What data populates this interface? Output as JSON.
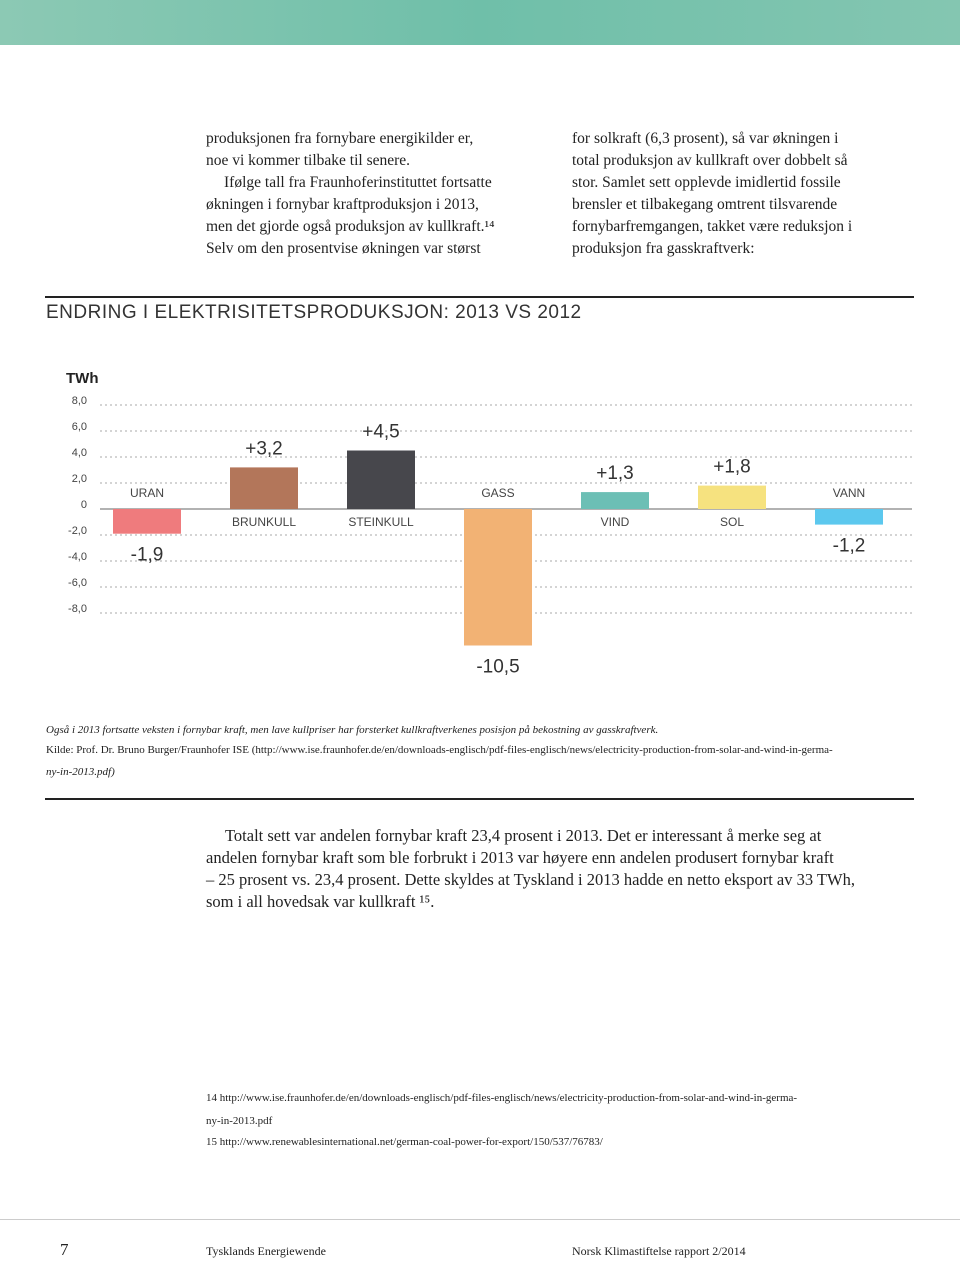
{
  "body_left": [
    "produksjonen fra fornybare energikilder er,",
    "noe vi kommer tilbake til senere.",
    "Ifølge tall fra Fraunhoferinstituttet fortsatte",
    "økningen i fornybar kraftproduksjon i 2013,",
    "men det gjorde også produksjon av kullkraft.¹⁴",
    "Selv om den prosentvise økningen var størst"
  ],
  "body_right": [
    "for solkraft (6,3 prosent), så var økningen i",
    "total produksjon av kullkraft over dobbelt så",
    "stor. Samlet sett opplevde imidlertid fossile",
    "brensler et tilbakegang omtrent tilsvarende",
    "fornybarfremgangen, takket være reduksjon i",
    "produksjon fra gasskraftverk:"
  ],
  "chart_data": {
    "type": "bar",
    "title": "ENDRING I ELEKTRISITETSPRODUKSJON: 2013 VS 2012",
    "y_label": "TWh",
    "categories": [
      "URAN",
      "BRUNKULL",
      "STEINKULL",
      "GASS",
      "VIND",
      "SOL",
      "VANN"
    ],
    "values": [
      -1.9,
      3.2,
      4.5,
      -10.5,
      1.3,
      1.8,
      -1.2
    ],
    "value_labels": [
      "-1,9",
      "+3,2",
      "+4,5",
      "-10,5",
      "+1,3",
      "+1,8",
      "-1,2"
    ],
    "colors": [
      "#ef7b7d",
      "#b3765a",
      "#47474c",
      "#f2b274",
      "#6cbfb5",
      "#f6e27f",
      "#5cc8ee"
    ],
    "ylim": [
      -8,
      8
    ],
    "yticks": [
      {
        "value": 8,
        "label": "8,0"
      },
      {
        "value": 6,
        "label": "6,0"
      },
      {
        "value": 4,
        "label": "4,0"
      },
      {
        "value": 2,
        "label": "2,0"
      },
      0,
      {
        "value": -2,
        "label": "-2,0"
      },
      {
        "value": -4,
        "label": "-4,0"
      },
      {
        "value": -6,
        "label": "-6,0"
      },
      {
        "value": -8,
        "label": "-8,0"
      }
    ],
    "grid": true
  },
  "caption": "Også i 2013 fortsatte veksten i fornybar kraft, men lave kullpriser har forsterket kullkraftverkenes posisjon på bekostning av gasskraftverk.",
  "source_lines": [
    "Kilde: Prof. Dr. Bruno Burger/Fraunhofer ISE (http://www.ise.fraunhofer.de/en/downloads-englisch/pdf-files-englisch/news/electricity-production-from-solar-and-wind-in-germa-",
    "ny-in-2013.pdf)"
  ],
  "paragraph_lines": [
    "Totalt sett var andelen fornybar kraft 23,4 prosent i 2013. Det er interessant å merke seg at",
    "andelen fornybar kraft som ble forbrukt i 2013 var høyere enn andelen produsert fornybar kraft",
    "– 25 prosent vs. 23,4 prosent. Dette skyldes at Tyskland i 2013 hadde en netto eksport av 33 TWh,",
    "som i all hovedsak var kullkraft ¹⁵."
  ],
  "footnotes": [
    "14  http://www.ise.fraunhofer.de/en/downloads-englisch/pdf-files-englisch/news/electricity-production-from-solar-and-wind-in-germa-",
    "ny-in-2013.pdf",
    "15  http://www.renewablesinternational.net/german-coal-power-for-export/150/537/76783/"
  ],
  "footer": {
    "page": "7",
    "left": "Tysklands Energiewende",
    "right": "Norsk Klimastiftelse rapport 2/2014"
  }
}
